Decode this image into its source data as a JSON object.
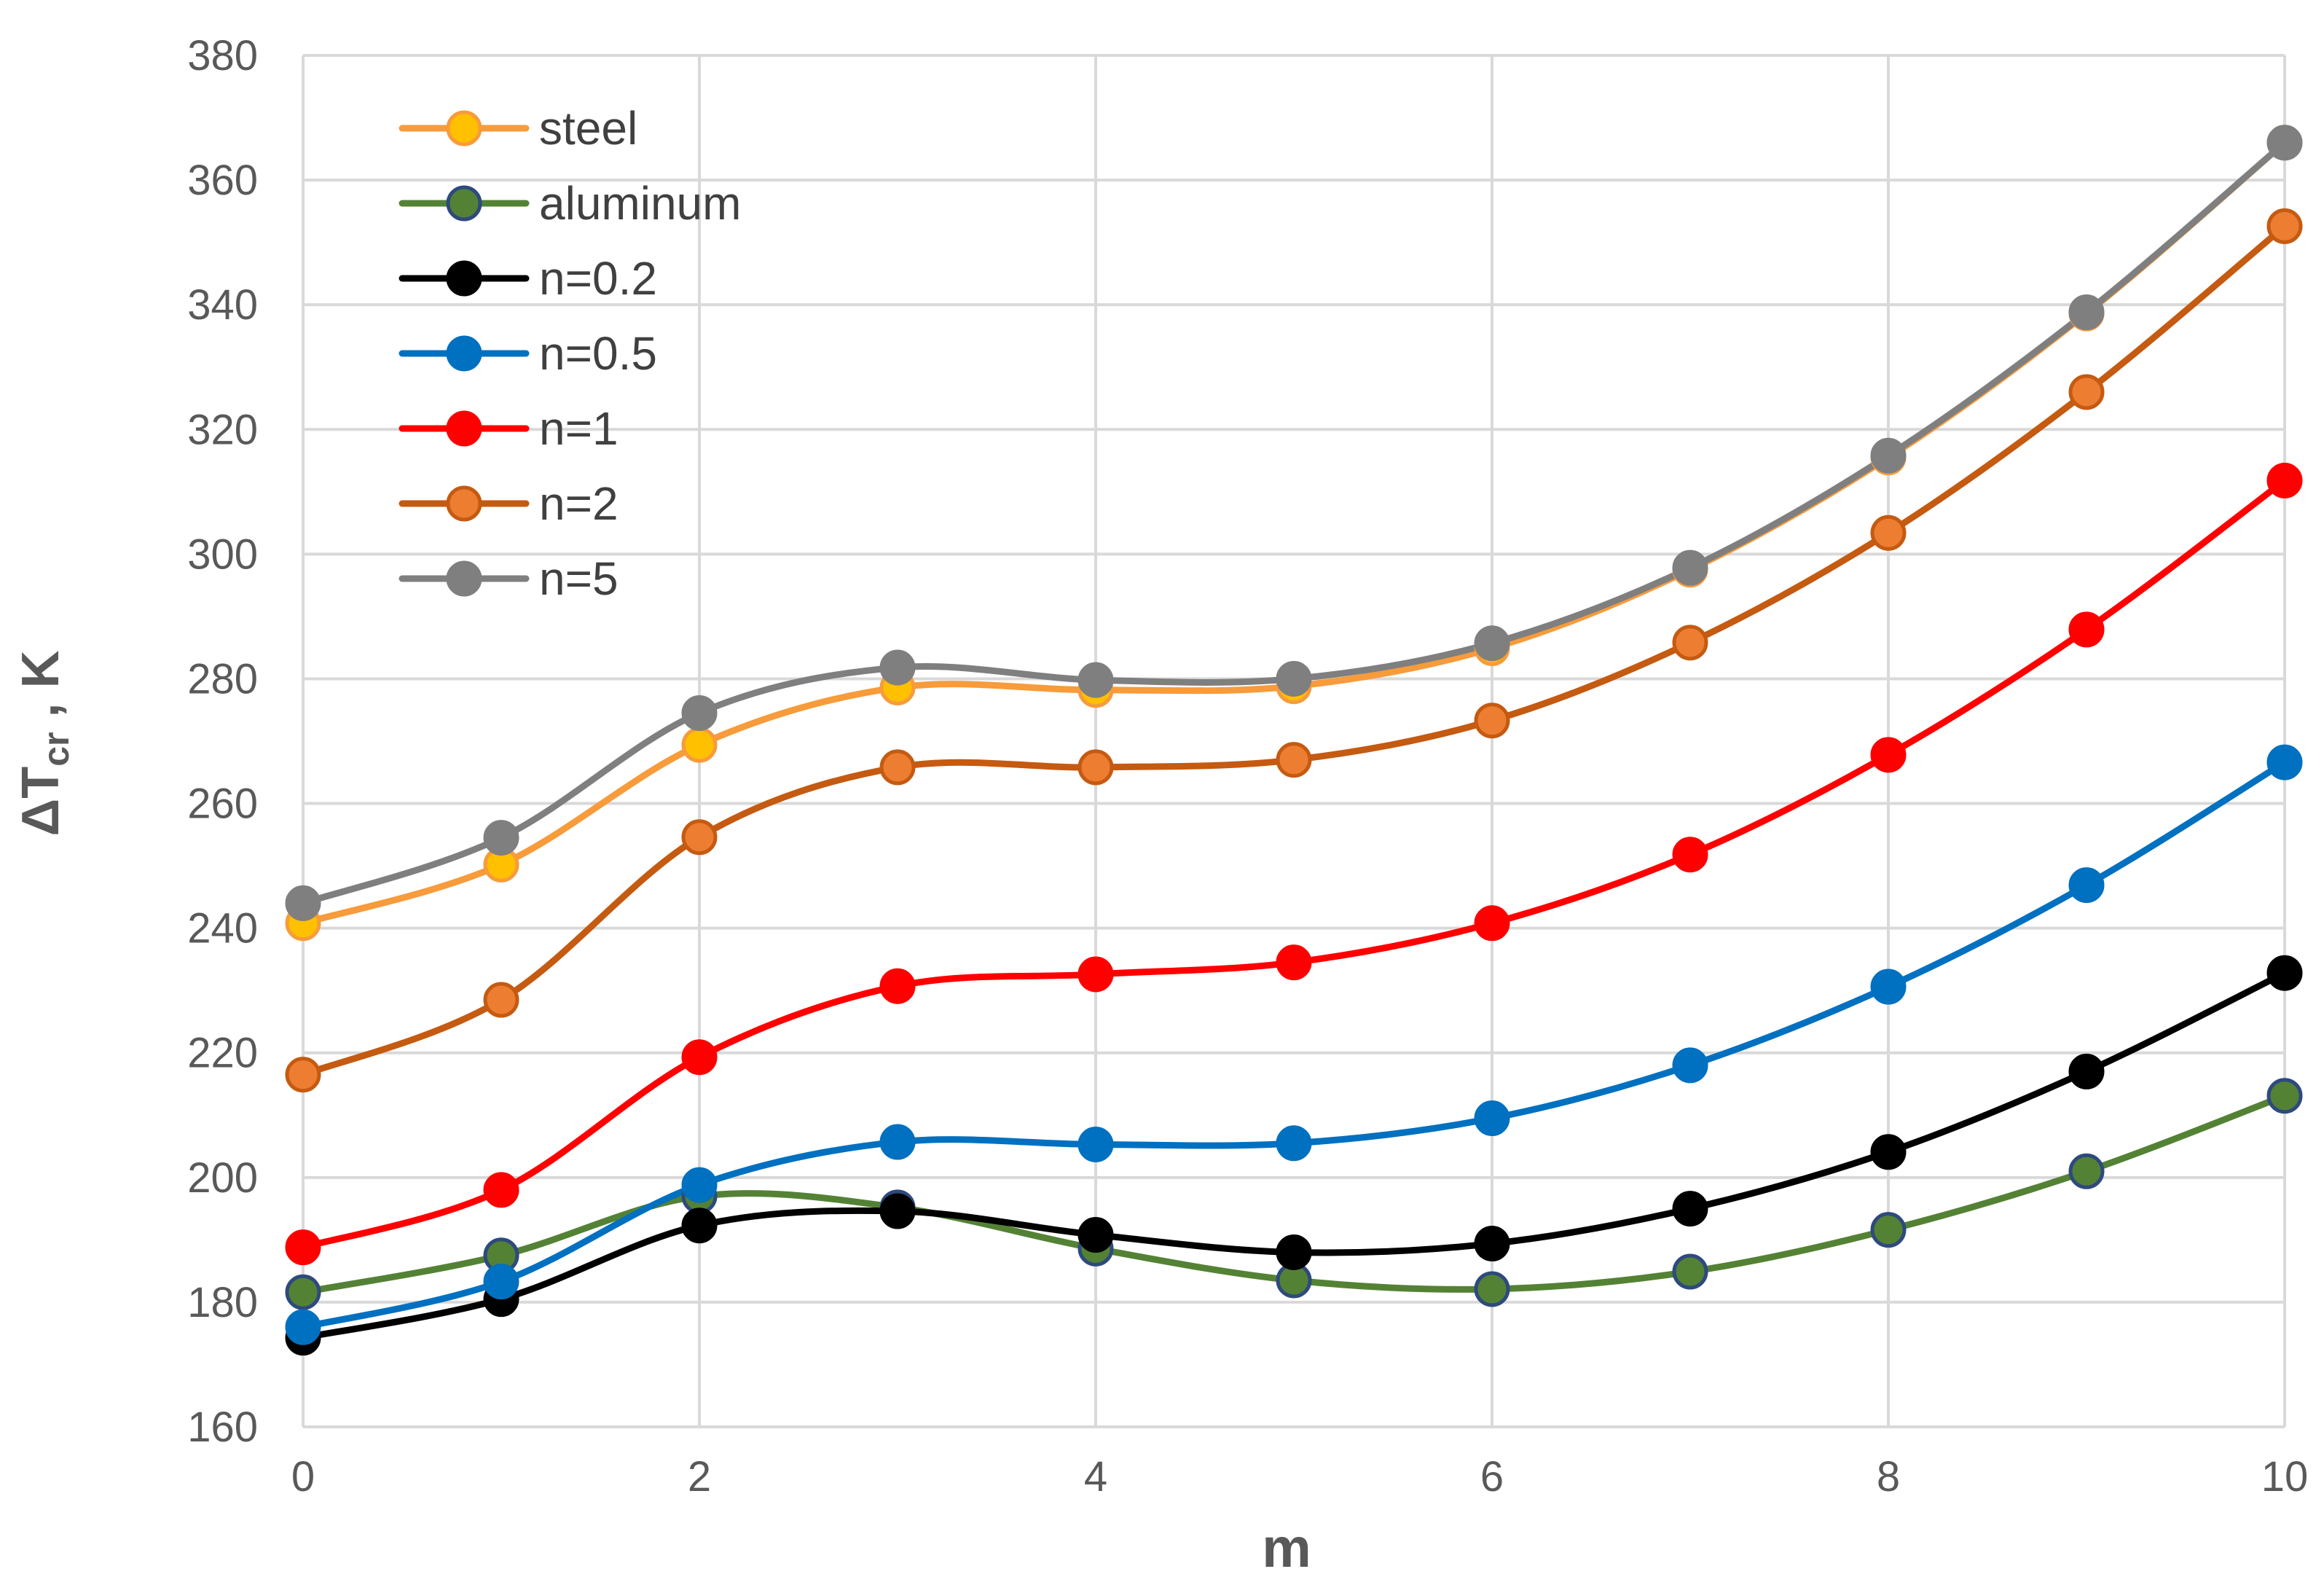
{
  "chart_data": {
    "type": "line",
    "title": "",
    "xlabel": "m",
    "ylabel_main": "ΔT",
    "ylabel_sub": "cr",
    "ylabel_tail": " , K",
    "xlim": [
      0,
      10
    ],
    "ylim": [
      160,
      380
    ],
    "x_ticks": [
      "0",
      "2",
      "4",
      "6",
      "8",
      "10"
    ],
    "y_ticks": [
      "160",
      "180",
      "200",
      "220",
      "240",
      "260",
      "280",
      "300",
      "320",
      "340",
      "360",
      "380"
    ],
    "grid": true,
    "legend_position": "top-left",
    "x": [
      0,
      1,
      2,
      3,
      4,
      5,
      6,
      7,
      8,
      9,
      10
    ],
    "series": [
      {
        "name": "steel",
        "color": "#F79B3B",
        "marker_fill": "#FFC000",
        "marker_stroke": "#F79B3B",
        "values": [
          240.8,
          250.2,
          269.4,
          278.6,
          278.2,
          278.8,
          284.9,
          297.5,
          315.5,
          338.6,
          366.0
        ]
      },
      {
        "name": "aluminum",
        "color": "#548235",
        "marker_fill": "#548235",
        "marker_stroke": "#2E4A7D",
        "values": [
          181.6,
          187.5,
          197.0,
          195.2,
          188.6,
          183.5,
          182.1,
          184.9,
          191.6,
          201.0,
          213.1
        ]
      },
      {
        "name": "n=0.2",
        "color": "#000000",
        "marker_fill": "#000000",
        "marker_stroke": "#000000",
        "values": [
          174.3,
          180.5,
          192.3,
          194.6,
          190.8,
          188.0,
          189.4,
          195.0,
          204.1,
          217.0,
          232.8
        ]
      },
      {
        "name": "n=0.5",
        "color": "#0070C0",
        "marker_fill": "#0070C0",
        "marker_stroke": "#0070C0",
        "values": [
          176.0,
          183.3,
          198.8,
          205.7,
          205.3,
          205.5,
          209.5,
          218.0,
          230.6,
          246.9,
          266.6
        ]
      },
      {
        "name": "n=1",
        "color": "#FF0000",
        "marker_fill": "#FF0000",
        "marker_stroke": "#FF0000",
        "values": [
          188.8,
          198.0,
          219.3,
          230.7,
          232.6,
          234.5,
          240.8,
          251.8,
          267.8,
          287.9,
          311.8
        ]
      },
      {
        "name": "n=2",
        "color": "#C55A11",
        "marker_fill": "#ED7D31",
        "marker_stroke": "#C55A11",
        "values": [
          216.5,
          228.5,
          254.6,
          265.8,
          265.8,
          267.0,
          273.3,
          285.8,
          303.4,
          326.0,
          352.6
        ]
      },
      {
        "name": "n=5",
        "color": "#7F7F7F",
        "marker_fill": "#7F7F7F",
        "marker_stroke": "#7F7F7F",
        "values": [
          244.0,
          254.5,
          274.5,
          281.8,
          279.8,
          280.0,
          285.7,
          297.8,
          315.8,
          338.8,
          366.0
        ]
      }
    ]
  }
}
